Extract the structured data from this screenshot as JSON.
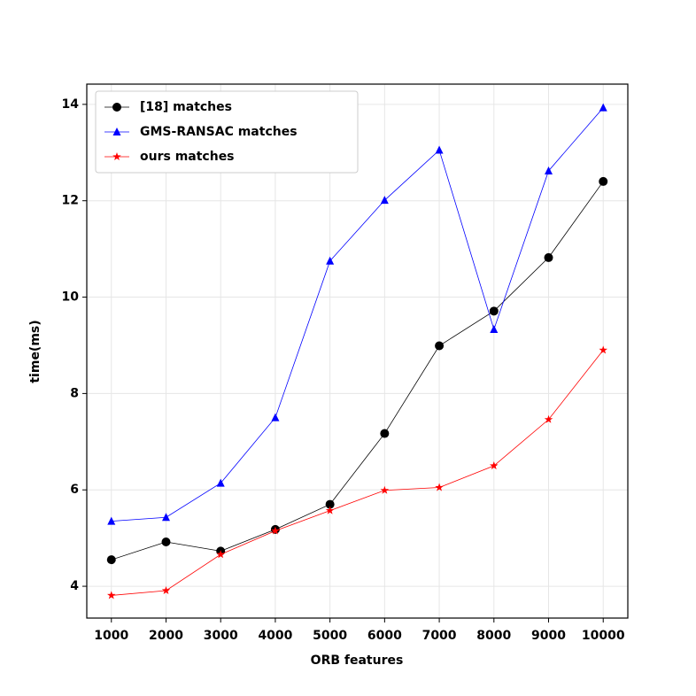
{
  "chart_data": {
    "type": "line",
    "x_label": "ORB features",
    "y_label": "time(ms)",
    "x": [
      1000,
      2000,
      3000,
      4000,
      5000,
      6000,
      7000,
      8000,
      9000,
      10000
    ],
    "series": [
      {
        "name": "[18] matches",
        "color": "#000000",
        "marker": "circle",
        "values": [
          4.55,
          4.92,
          4.73,
          5.18,
          5.7,
          7.17,
          8.99,
          9.71,
          10.82,
          12.4
        ]
      },
      {
        "name": "GMS-RANSAC matches",
        "color": "#0000ff",
        "marker": "triangle",
        "values": [
          5.35,
          5.43,
          6.14,
          7.5,
          10.75,
          12.01,
          13.05,
          9.33,
          12.62,
          13.93
        ]
      },
      {
        "name": "ours matches",
        "color": "#ff0000",
        "marker": "star",
        "values": [
          3.81,
          3.91,
          4.66,
          5.15,
          5.57,
          5.99,
          6.05,
          6.5,
          7.46,
          8.9
        ]
      }
    ],
    "xlim": [
      550,
      10450
    ],
    "ylim": [
      3.34,
      14.42
    ],
    "xticks": [
      1000,
      2000,
      3000,
      4000,
      5000,
      6000,
      7000,
      8000,
      9000,
      10000
    ],
    "yticks": [
      4,
      6,
      8,
      10,
      12,
      14
    ],
    "grid": true,
    "legend": "upper-left"
  }
}
